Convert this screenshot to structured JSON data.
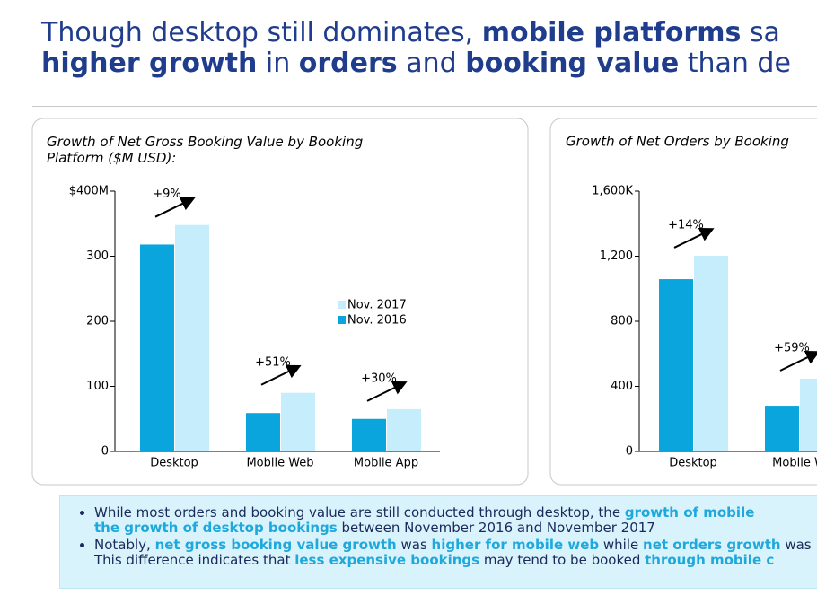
{
  "title": {
    "lines": [
      [
        {
          "t": "Though desktop still dominates, "
        },
        {
          "b": "mobile platforms"
        },
        {
          "t": " sa"
        }
      ],
      [
        {
          "b": "higher growth"
        },
        {
          "t": " in "
        },
        {
          "b": "orders"
        },
        {
          "t": " and "
        },
        {
          "b": "booking value"
        },
        {
          "t": " than de"
        }
      ]
    ]
  },
  "chart_data": [
    {
      "type": "bar",
      "title": "Growth of Net Gross Booking Value by Booking Platform ($M USD):",
      "categories": [
        "Desktop",
        "Mobile Web",
        "Mobile App"
      ],
      "series": [
        {
          "name": "Nov. 2016",
          "color": "#0aa5dd",
          "values": [
            318,
            59,
            50
          ]
        },
        {
          "name": "Nov. 2017",
          "color": "#c6edfb",
          "values": [
            348,
            90,
            65
          ]
        }
      ],
      "annotations": [
        "+9%",
        "+51%",
        "+30%"
      ],
      "ylim": [
        0,
        400
      ],
      "yticks": [
        0,
        100,
        200,
        300,
        {
          "value": 400,
          "label": "$400M"
        }
      ]
    },
    {
      "type": "bar",
      "title": "Growth of Net Orders by Booking",
      "categories": [
        "Desktop",
        "Mobile W"
      ],
      "series": [
        {
          "color": "#0aa5dd",
          "values": [
            1059,
            281
          ]
        },
        {
          "color": "#c6edfb",
          "values": [
            1203,
            447
          ]
        }
      ],
      "annotations": [
        "+14%",
        "+59%"
      ],
      "ylim": [
        0,
        1600
      ],
      "yticks": [
        0,
        400,
        800,
        {
          "value": 1200,
          "label": "1,200"
        },
        {
          "value": 1600,
          "label": "1,600K"
        }
      ]
    }
  ],
  "bullets": [
    [
      [
        {
          "t": "While most orders and booking value are still conducted through desktop, the "
        },
        {
          "b": "growth of mobile"
        }
      ],
      [
        {
          "b": "the growth of desktop bookings"
        },
        {
          "t": " between November 2016 and November 2017"
        }
      ]
    ],
    [
      [
        {
          "t": "Notably, "
        },
        {
          "b": "net gross booking value growth"
        },
        {
          "t": " was "
        },
        {
          "b": "higher for mobile web"
        },
        {
          "t": " while "
        },
        {
          "b": "net orders growth"
        },
        {
          "t": " was"
        }
      ],
      [
        {
          "t": "This difference indicates that "
        },
        {
          "b": "less expensive bookings"
        },
        {
          "t": " may tend to be booked "
        },
        {
          "b": "through mobile c"
        }
      ]
    ]
  ]
}
